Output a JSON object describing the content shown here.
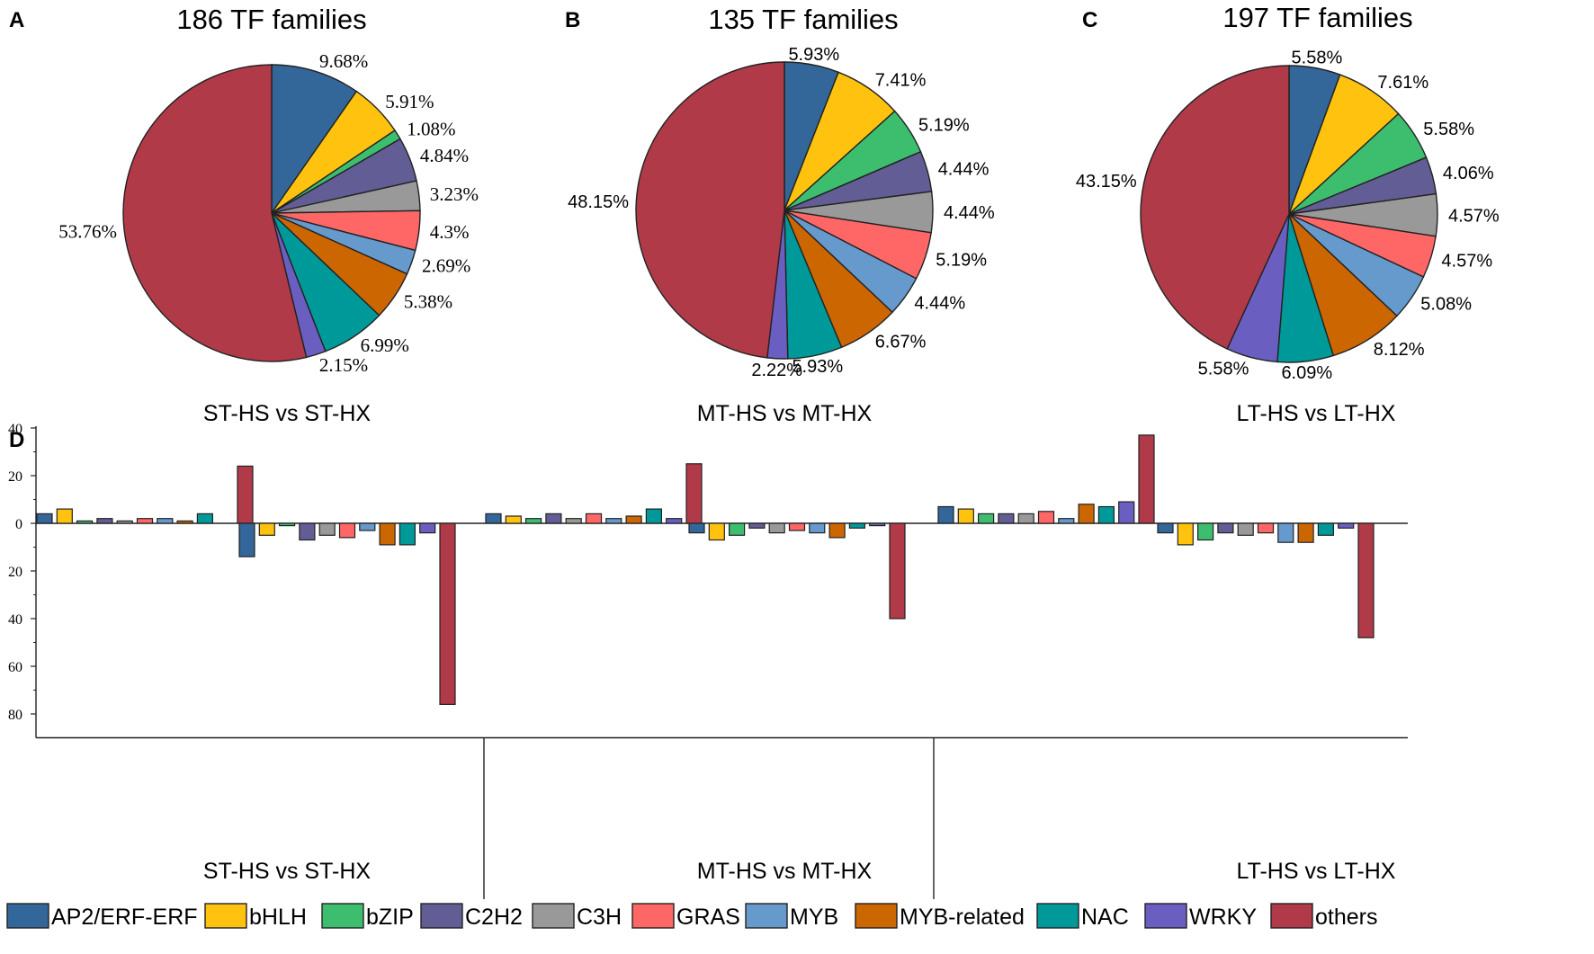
{
  "colors": {
    "AP2/ERF-ERF": "#336699",
    "bHLH": "#FFC20E",
    "bZIP": "#3CBE6E",
    "C2H2": "#625D94",
    "C3H": "#999999",
    "GRAS": "#FF6666",
    "MYB": "#6699CC",
    "MYB-related": "#CC6600",
    "NAC": "#009999",
    "WRKY": "#6A5FC1",
    "others": "#B03A48"
  },
  "chart_data": [
    {
      "type": "pie",
      "panel": "A",
      "title": "186 TF families",
      "xlabel": "ST-HS vs ST-HX",
      "categories": [
        "AP2/ERF-ERF",
        "bHLH",
        "bZIP",
        "C2H2",
        "C3H",
        "GRAS",
        "MYB",
        "MYB-related",
        "NAC",
        "WRKY",
        "others"
      ],
      "values": [
        9.68,
        5.91,
        1.08,
        4.84,
        3.23,
        4.3,
        2.69,
        5.38,
        6.99,
        2.15,
        53.76
      ],
      "labels": [
        "9.68%",
        "5.91%",
        "1.08%",
        "4.84%",
        "3.23%",
        "4.3%",
        "2.69%",
        "5.38%",
        "6.99%",
        "2.15%",
        "53.76%"
      ]
    },
    {
      "type": "pie",
      "panel": "B",
      "title": "135 TF families",
      "xlabel": "MT-HS vs MT-HX",
      "categories": [
        "AP2/ERF-ERF",
        "bHLH",
        "bZIP",
        "C2H2",
        "C3H",
        "GRAS",
        "MYB",
        "MYB-related",
        "NAC",
        "WRKY",
        "others"
      ],
      "values": [
        5.93,
        7.41,
        5.19,
        4.44,
        4.44,
        5.19,
        4.44,
        6.67,
        5.93,
        2.22,
        48.15
      ],
      "labels": [
        "5.93%",
        "7.41%",
        "5.19%",
        "4.44%",
        "4.44%",
        "5.19%",
        "4.44%",
        "6.67%",
        "5.93%",
        "2.22%",
        "48.15%"
      ]
    },
    {
      "type": "pie",
      "panel": "C",
      "title": "197 TF families",
      "xlabel": "LT-HS vs LT-HX",
      "categories": [
        "AP2/ERF-ERF",
        "bHLH",
        "bZIP",
        "C2H2",
        "C3H",
        "GRAS",
        "MYB",
        "MYB-related",
        "NAC",
        "WRKY",
        "others"
      ],
      "values": [
        5.58,
        7.61,
        5.58,
        4.06,
        4.57,
        4.57,
        5.08,
        8.12,
        6.09,
        5.58,
        43.15
      ],
      "labels": [
        "5.58%",
        "7.61%",
        "5.58%",
        "4.06%",
        "4.57%",
        "4.57%",
        "5.08%",
        "8.12%",
        "6.09%",
        "5.58%",
        "43.15%"
      ]
    },
    {
      "type": "bar",
      "panel": "D",
      "ylim": [
        -90,
        40
      ],
      "yticks": [
        40,
        20,
        0,
        -20,
        -40,
        -60,
        -80
      ],
      "ytick_labels": [
        "40",
        "20",
        "0",
        "20",
        "40",
        "60",
        "80"
      ],
      "groups": [
        "ST-HS vs ST-HX",
        "MT-HS vs MT-HX",
        "LT-HS vs LT-HX"
      ],
      "categories": [
        "AP2/ERF-ERF",
        "bHLH",
        "bZIP",
        "C2H2",
        "C3H",
        "GRAS",
        "MYB",
        "MYB-related",
        "NAC",
        "WRKY",
        "others"
      ],
      "series": [
        {
          "group": "ST-HS vs ST-HX",
          "direction": "up",
          "values": [
            4,
            6,
            1,
            2,
            1,
            2,
            2,
            1,
            4,
            0,
            24
          ]
        },
        {
          "group": "ST-HS vs ST-HX",
          "direction": "down",
          "values": [
            -14,
            -5,
            -1,
            -7,
            -5,
            -6,
            -3,
            -9,
            -9,
            -4,
            -76
          ]
        },
        {
          "group": "MT-HS vs MT-HX",
          "direction": "up",
          "values": [
            4,
            3,
            2,
            4,
            2,
            4,
            2,
            3,
            6,
            2,
            25
          ]
        },
        {
          "group": "MT-HS vs MT-HX",
          "direction": "down",
          "values": [
            -4,
            -7,
            -5,
            -2,
            -4,
            -3,
            -4,
            -6,
            -2,
            -1,
            -40
          ]
        },
        {
          "group": "LT-HS vs LT-HX",
          "direction": "up",
          "values": [
            7,
            6,
            4,
            4,
            4,
            5,
            2,
            8,
            7,
            9,
            37
          ]
        },
        {
          "group": "LT-HS vs LT-HX",
          "direction": "down",
          "values": [
            -4,
            -9,
            -7,
            -4,
            -5,
            -4,
            -8,
            -8,
            -5,
            -2,
            -48
          ]
        }
      ]
    }
  ],
  "legend": [
    "AP2/ERF-ERF",
    "bHLH",
    "bZIP",
    "C2H2",
    "C3H",
    "GRAS",
    "MYB",
    "MYB-related",
    "NAC",
    "WRKY",
    "others"
  ]
}
